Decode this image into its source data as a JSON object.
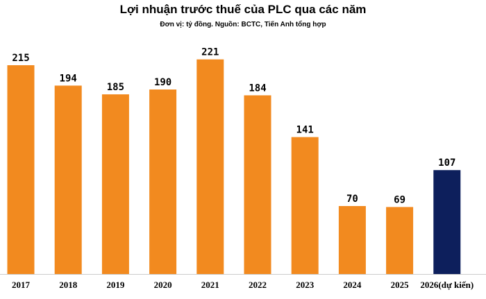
{
  "chart_data": {
    "type": "bar",
    "title": "Lợi nhuận trước thuế của PLC qua các năm",
    "subtitle": "Đơn vị: tỷ đồng. Nguồn: BCTC, Tiến Anh tổng hợp",
    "categories": [
      "2017",
      "2018",
      "2019",
      "2020",
      "2021",
      "2022",
      "2023",
      "2024",
      "2025",
      "2026(dự kiến)"
    ],
    "values": [
      215,
      194,
      185,
      190,
      221,
      184,
      141,
      70,
      69,
      107
    ],
    "ylim": [
      0,
      230
    ],
    "grid": false,
    "colors": {
      "actual": "#f28a1f",
      "forecast": "#0d1f5c",
      "axis": "#cccccc"
    },
    "forecast_index": 9
  }
}
